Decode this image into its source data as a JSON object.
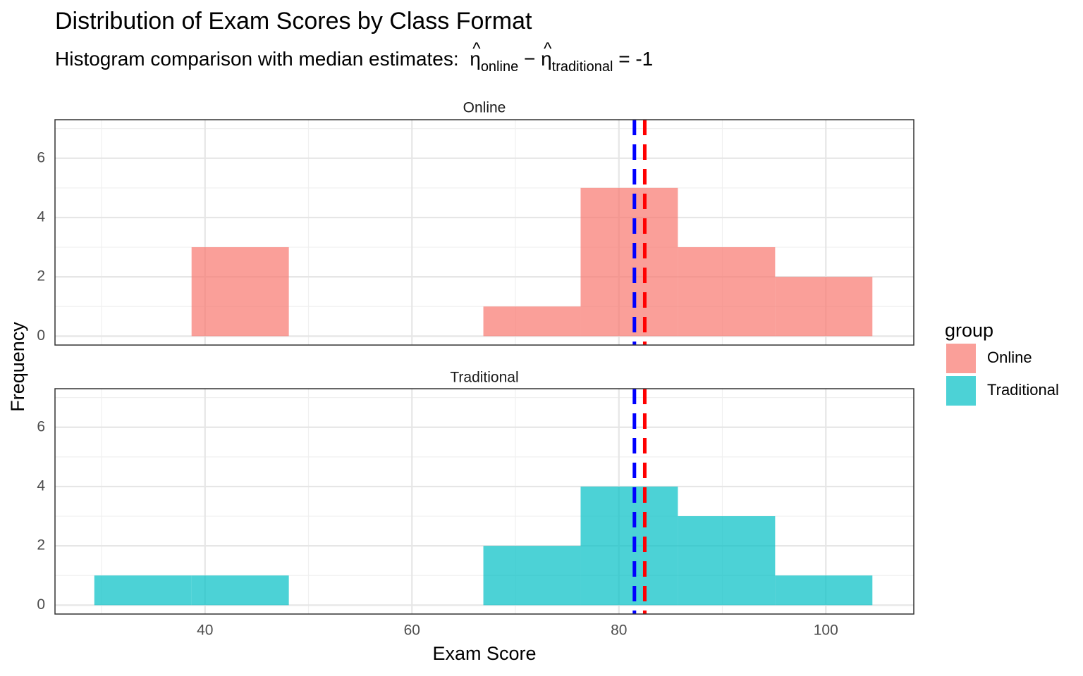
{
  "chart_data": {
    "type": "histogram",
    "title": "Distribution of Exam Scores by Class Format",
    "subtitle": {
      "prefix": "Histogram comparison with median estimates:",
      "symbol": "η",
      "hat": "^",
      "sub_a": "online",
      "minus": "−",
      "sub_b": "traditional",
      "equals": "= -1"
    },
    "xlabel": "Exam Score",
    "ylabel": "Frequency",
    "xlim": [
      25.5,
      108.5
    ],
    "ylim": [
      -0.3,
      7.3
    ],
    "x_ticks": [
      40,
      60,
      80,
      100
    ],
    "y_ticks": [
      0,
      2,
      4,
      6
    ],
    "grid": true,
    "legend": {
      "title": "group",
      "position": "right",
      "items": [
        {
          "label": "Online",
          "color": "#F8766D"
        },
        {
          "label": "Traditional",
          "color": "#00BFC4"
        }
      ]
    },
    "median_lines": [
      {
        "x": 81.5,
        "color": "#0000FF",
        "style": "dashed"
      },
      {
        "x": 82.5,
        "color": "#FF0000",
        "style": "dashed"
      }
    ],
    "bin_edges": [
      29.3,
      38.7,
      48.1,
      57.5,
      66.9,
      76.3,
      85.7,
      95.1,
      104.5
    ],
    "panels": [
      {
        "label": "Online",
        "color": "#F8766D",
        "counts": [
          0,
          3,
          0,
          0,
          1,
          5,
          3,
          2
        ]
      },
      {
        "label": "Traditional",
        "color": "#00BFC4",
        "counts": [
          1,
          1,
          0,
          0,
          2,
          4,
          3,
          1
        ]
      }
    ]
  }
}
